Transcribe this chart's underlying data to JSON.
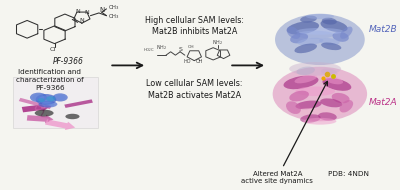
{
  "bg_color": "#f5f5f0",
  "arrow_color": "#1a1a1a",
  "panel_texts": {
    "pf9366_label": "PF-9366",
    "id_char": "Identification and\ncharacterization of\nPF-9366",
    "high_sam": "High cellular SAM levels:\nMat2B inhibits Mat2A",
    "low_sam": "Low cellular SAM levels:\nMat2B activates Mat2A",
    "mat2b_label": "Mat2B",
    "mat2a_label": "Mat2A",
    "altered": "Altered Mat2A\nactive site dynamics",
    "pdb": "PDB: 4NDN"
  },
  "figsize": [
    4.0,
    1.9
  ],
  "dpi": 100
}
